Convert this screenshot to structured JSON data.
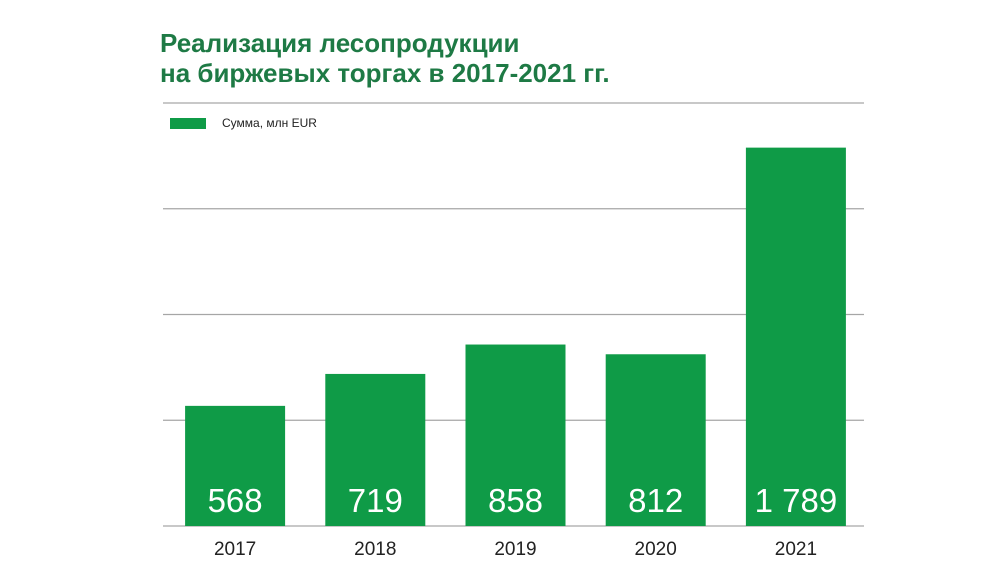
{
  "colors": {
    "title": "#1e7a45",
    "bar": "#0f9b47",
    "grid": "#a6a6a6",
    "bar_label": "#ffffff",
    "axis_label": "#222222"
  },
  "chart_data": {
    "type": "bar",
    "title_lines": [
      "Реализация лесопродукции",
      "на биржевых торгах в 2017-2021 гг."
    ],
    "categories": [
      "2017",
      "2018",
      "2019",
      "2020",
      "2021"
    ],
    "series": [
      {
        "name": "Сумма, млн EUR",
        "values": [
          568,
          719,
          858,
          812,
          1789
        ],
        "labels": [
          "568",
          "719",
          "858",
          "812",
          "1 789"
        ]
      }
    ],
    "ylim": [
      0,
      2000
    ],
    "grid": true,
    "legend": "top-left",
    "xlabel": "",
    "ylabel": ""
  }
}
